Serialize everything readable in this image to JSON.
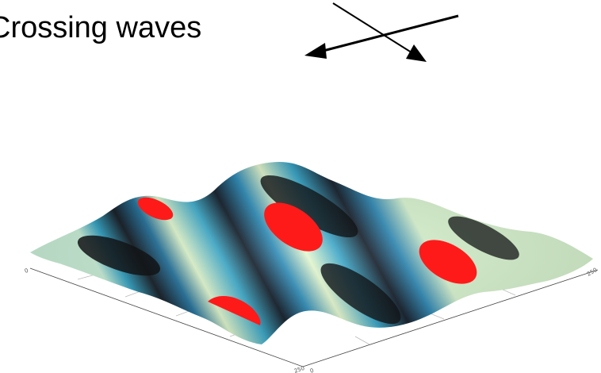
{
  "title": "Crossing waves",
  "axis_ticks": {
    "x_start": "0",
    "x_end": "250",
    "y_start": "0",
    "y_end": "250"
  },
  "colors": {
    "peak": "#ff1a1a",
    "light": "#e6f7c8",
    "mid": "#2aa4c4",
    "dark": "#0d1c2a",
    "trough": "#141414"
  }
}
